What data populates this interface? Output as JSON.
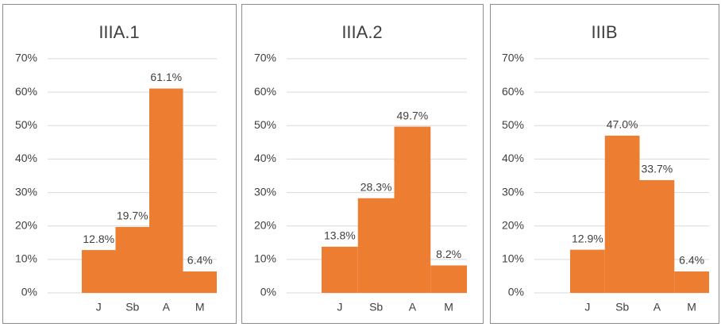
{
  "chart_data": [
    {
      "type": "bar",
      "title": "IIIA.1",
      "categories": [
        "J",
        "Sb",
        "A",
        "M"
      ],
      "values": [
        12.8,
        19.7,
        61.1,
        6.4
      ],
      "value_labels": [
        "12.8%",
        "19.7%",
        "61.1%",
        "6.4%"
      ],
      "color": "#ed7d31",
      "ylim": [
        0,
        70
      ],
      "yticks": [
        {
          "value": 0,
          "label": "0%"
        },
        {
          "value": 10,
          "label": "10%"
        },
        {
          "value": 20,
          "label": "20%"
        },
        {
          "value": 30,
          "label": "30%"
        },
        {
          "value": 40,
          "label": "40%"
        },
        {
          "value": 50,
          "label": "50%"
        },
        {
          "value": 60,
          "label": "60%"
        },
        {
          "value": 70,
          "label": "70%"
        }
      ],
      "grid": true
    },
    {
      "type": "bar",
      "title": "IIIA.2",
      "categories": [
        "J",
        "Sb",
        "A",
        "M"
      ],
      "values": [
        13.8,
        28.3,
        49.7,
        8.2
      ],
      "value_labels": [
        "13.8%",
        "28.3%",
        "49.7%",
        "8.2%"
      ],
      "color": "#ed7d31",
      "ylim": [
        0,
        70
      ],
      "yticks": [
        {
          "value": 0,
          "label": "0%"
        },
        {
          "value": 10,
          "label": "10%"
        },
        {
          "value": 20,
          "label": "20%"
        },
        {
          "value": 30,
          "label": "30%"
        },
        {
          "value": 40,
          "label": "40%"
        },
        {
          "value": 50,
          "label": "50%"
        },
        {
          "value": 60,
          "label": "60%"
        },
        {
          "value": 70,
          "label": "70%"
        }
      ],
      "grid": true
    },
    {
      "type": "bar",
      "title": "IIIB",
      "categories": [
        "J",
        "Sb",
        "A",
        "M"
      ],
      "values": [
        12.9,
        47.0,
        33.7,
        6.4
      ],
      "value_labels": [
        "12.9%",
        "47.0%",
        "33.7%",
        "6.4%"
      ],
      "color": "#ed7d31",
      "ylim": [
        0,
        70
      ],
      "yticks": [
        {
          "value": 0,
          "label": "0%"
        },
        {
          "value": 10,
          "label": "10%"
        },
        {
          "value": 20,
          "label": "20%"
        },
        {
          "value": 30,
          "label": "30%"
        },
        {
          "value": 40,
          "label": "40%"
        },
        {
          "value": 50,
          "label": "50%"
        },
        {
          "value": 60,
          "label": "60%"
        },
        {
          "value": 70,
          "label": "70%"
        }
      ],
      "grid": true
    }
  ]
}
